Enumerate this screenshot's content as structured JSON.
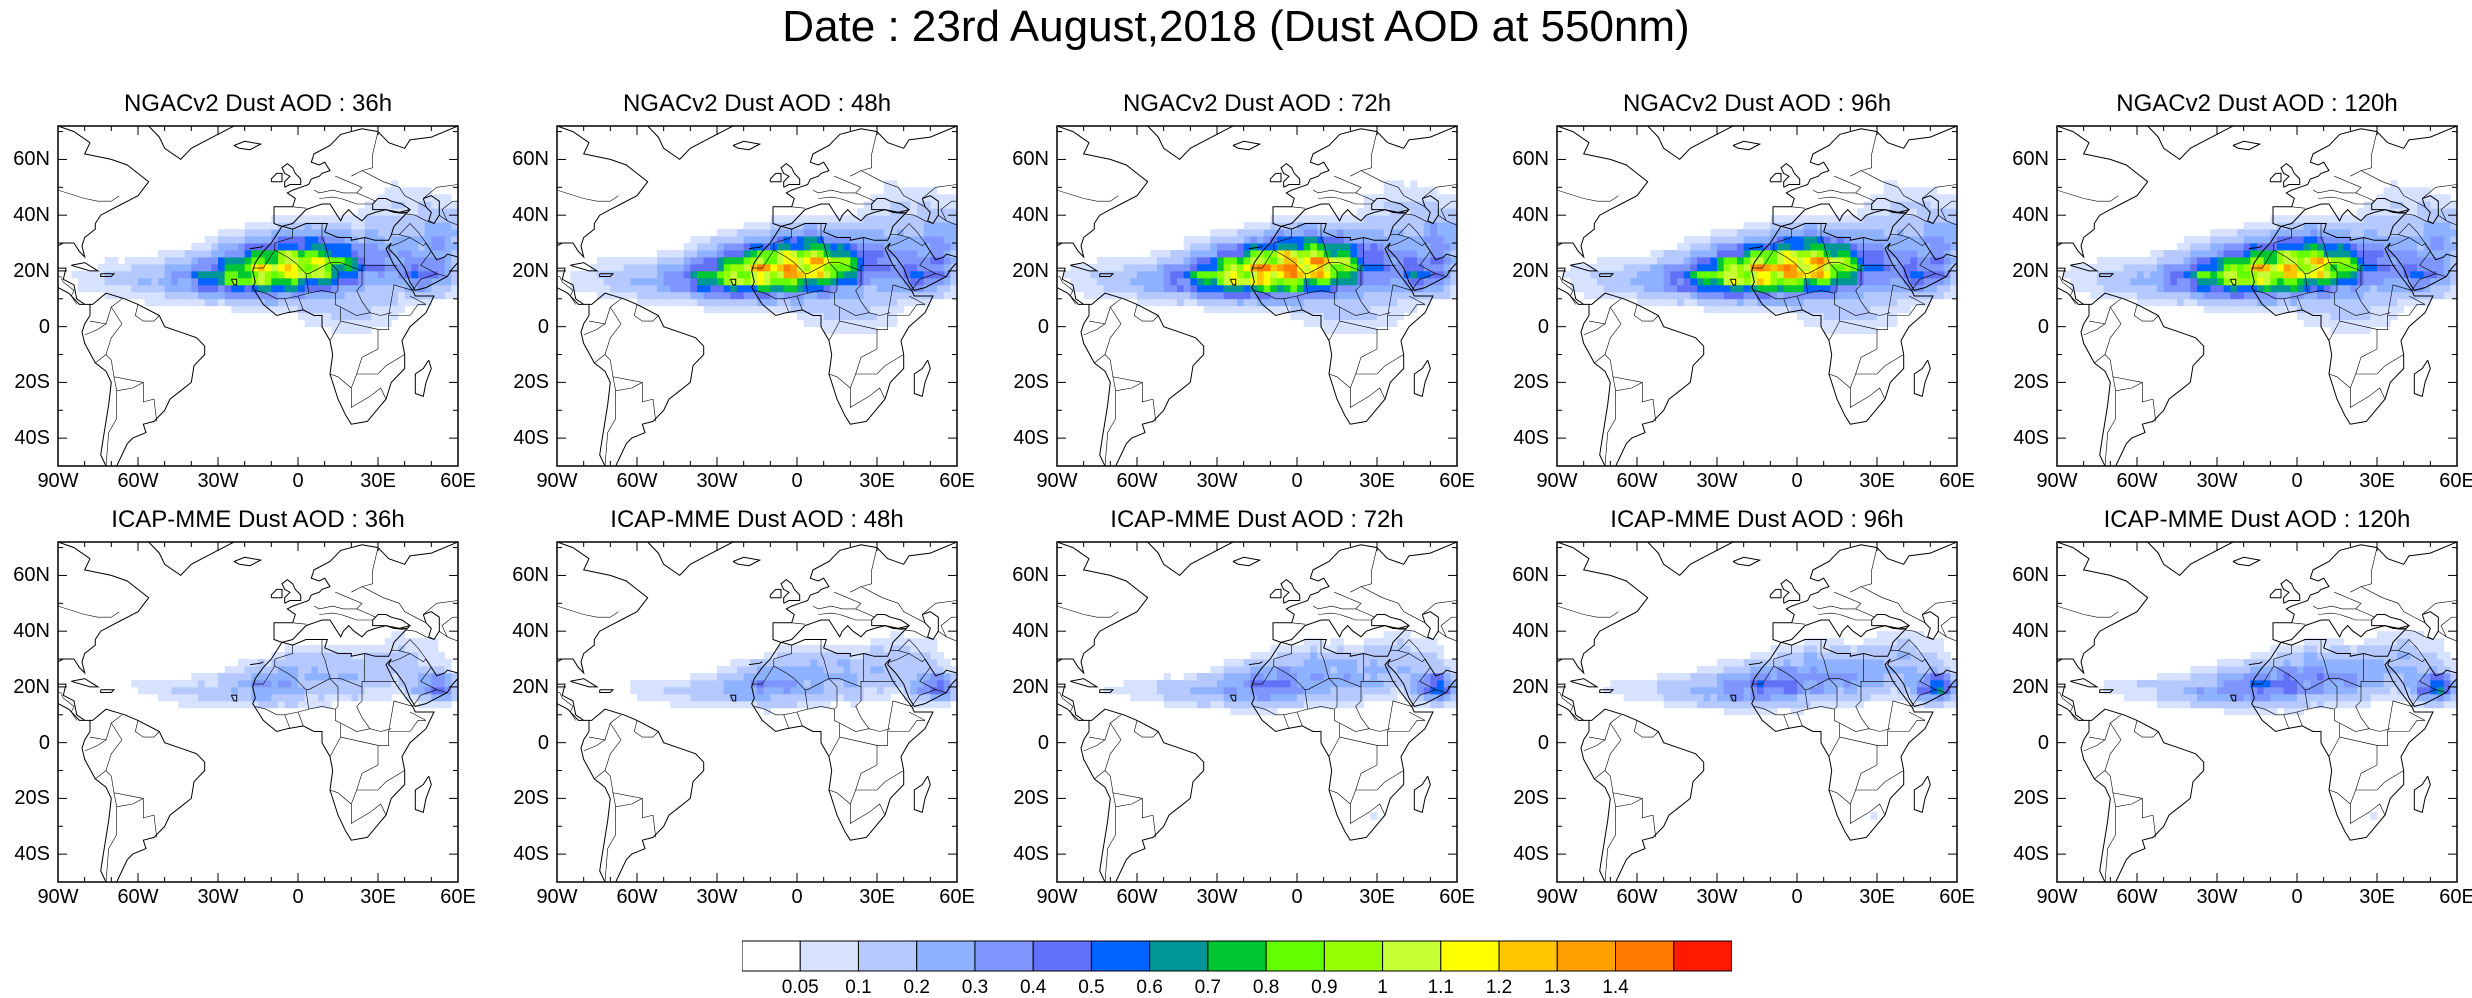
{
  "title": "Date : 23rd August,2018 (Dust AOD at 550nm)",
  "panels": [
    {
      "title": "NGACv2 Dust AOD : 36h",
      "model": "NGACv2",
      "intensity": 0.85,
      "spread": 0.95
    },
    {
      "title": "NGACv2 Dust AOD : 48h",
      "model": "NGACv2",
      "intensity": 0.95,
      "spread": 1.0
    },
    {
      "title": "NGACv2 Dust AOD : 72h",
      "model": "NGACv2",
      "intensity": 1.0,
      "spread": 1.05
    },
    {
      "title": "NGACv2 Dust AOD : 96h",
      "model": "NGACv2",
      "intensity": 0.95,
      "spread": 1.1
    },
    {
      "title": "NGACv2 Dust AOD : 120h",
      "model": "NGACv2",
      "intensity": 0.85,
      "spread": 1.15
    },
    {
      "title": "ICAP-MME Dust AOD : 36h",
      "model": "ICAP-MME",
      "intensity": 0.45,
      "spread": 0.9
    },
    {
      "title": "ICAP-MME Dust AOD : 48h",
      "model": "ICAP-MME",
      "intensity": 0.5,
      "spread": 0.95
    },
    {
      "title": "ICAP-MME Dust AOD : 72h",
      "model": "ICAP-MME",
      "intensity": 0.6,
      "spread": 1.0
    },
    {
      "title": "ICAP-MME Dust AOD : 96h",
      "model": "ICAP-MME",
      "intensity": 0.65,
      "spread": 1.05
    },
    {
      "title": "ICAP-MME Dust AOD : 120h",
      "model": "ICAP-MME",
      "intensity": 0.65,
      "spread": 1.1
    }
  ],
  "map": {
    "lon_range": [
      -90,
      60
    ],
    "lat_range": [
      -50,
      72
    ],
    "lat_ticks": [
      {
        "value": 60,
        "label": "60N"
      },
      {
        "value": 40,
        "label": "40N"
      },
      {
        "value": 20,
        "label": "20N"
      },
      {
        "value": 0,
        "label": "0"
      },
      {
        "value": -20,
        "label": "20S"
      },
      {
        "value": -40,
        "label": "40S"
      }
    ],
    "lon_ticks": [
      {
        "value": -90,
        "label": "90W"
      },
      {
        "value": -60,
        "label": "60W"
      },
      {
        "value": -30,
        "label": "30W"
      },
      {
        "value": 0,
        "label": "0"
      },
      {
        "value": 30,
        "label": "30E"
      },
      {
        "value": 60,
        "label": "60E"
      }
    ]
  },
  "colorbar": {
    "levels": [
      "0.05",
      "0.1",
      "0.2",
      "0.3",
      "0.4",
      "0.5",
      "0.6",
      "0.7",
      "0.8",
      "0.9",
      "1",
      "1.1",
      "1.2",
      "1.3",
      "1.4"
    ],
    "colors": [
      "#ffffff",
      "#d6e2ff",
      "#b5c9ff",
      "#8eb2ff",
      "#7f96ff",
      "#6370f8",
      "#0063ff",
      "#009696",
      "#00c633",
      "#63ff00",
      "#96ff00",
      "#c6ff33",
      "#ffff00",
      "#ffc600",
      "#ffa000",
      "#ff7c00",
      "#ff1900"
    ]
  }
}
